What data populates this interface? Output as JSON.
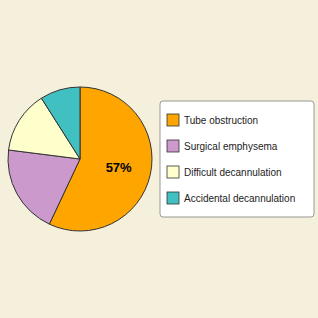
{
  "chart_data": {
    "type": "pie",
    "categories": [
      "Tube obstruction",
      "Surgical emphysema",
      "Difficult decannulation",
      "Accidental decannulation"
    ],
    "values": [
      57,
      20,
      14,
      9
    ],
    "value_labels": [
      "57%",
      null,
      null,
      null
    ],
    "colors": [
      "#FFA500",
      "#CC99CC",
      "#FFFFCC",
      "#40C0C0"
    ],
    "legend": "right"
  }
}
